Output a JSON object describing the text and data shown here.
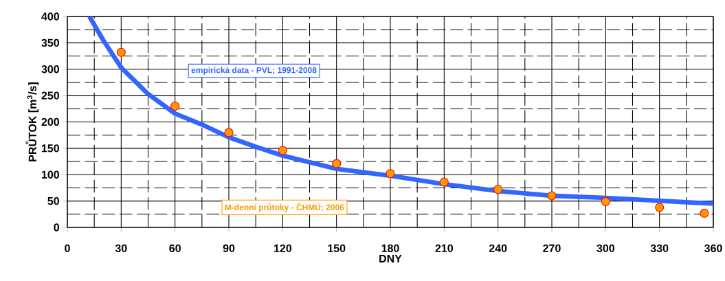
{
  "chart_data": {
    "type": "line",
    "xlabel": "DNY",
    "ylabel": "PRŮTOK [m$^{3}$/s]",
    "xlim": [
      0,
      360
    ],
    "ylim": [
      0,
      400
    ],
    "xticks": [
      0,
      30,
      60,
      90,
      120,
      150,
      180,
      210,
      240,
      270,
      300,
      330,
      360
    ],
    "yticks": [
      0,
      50,
      100,
      150,
      200,
      250,
      300,
      350,
      400
    ],
    "grid": true,
    "series": [
      {
        "name": "empirická data - PVL; 1991-2008",
        "color": "#3366ff",
        "marker": "none",
        "line_style": "solid",
        "x": [
          12.3,
          20,
          30,
          45,
          60,
          75,
          90,
          105,
          120,
          150,
          180,
          210,
          240,
          270,
          300,
          360
        ],
        "values": [
          400,
          355,
          303,
          253,
          216,
          195,
          171,
          153,
          136,
          111,
          98,
          82,
          69,
          60,
          56,
          45
        ]
      },
      {
        "name": "M-denní průtoky - ČHMÚ; 2006",
        "type": "scatter",
        "color": "#ff9900",
        "marker": "circle",
        "x": [
          30,
          60,
          90,
          120,
          150,
          180,
          210,
          240,
          270,
          300,
          330,
          355
        ],
        "values": [
          332,
          230,
          180,
          146,
          121,
          102,
          86,
          72,
          60,
          49,
          38,
          27
        ]
      }
    ]
  }
}
